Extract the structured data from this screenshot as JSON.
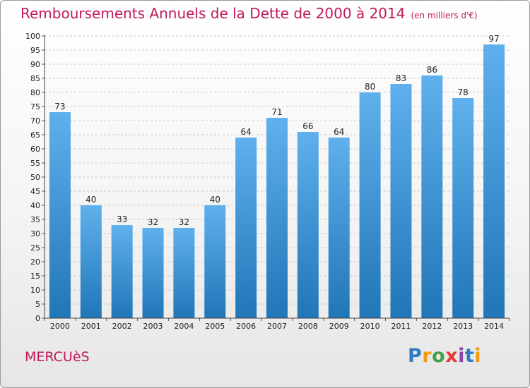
{
  "title": "Remboursements Annuels de la Dette de 2000 à 2014",
  "subtitle": "(en milliers d'€)",
  "commune": "MERCUèS",
  "logo": {
    "letters": [
      "P",
      "r",
      "o",
      "x",
      "i",
      "t",
      "i"
    ],
    "colors": [
      "#2e7bc4",
      "#f39c12",
      "#43a047",
      "#e53935",
      "#8e44ad",
      "#2e7bc4",
      "#f39c12"
    ]
  },
  "colors": {
    "bar_light": "#5fb0ec",
    "bar_dark": "#2176b8",
    "accent": "#c2185b"
  },
  "chart_data": {
    "type": "bar",
    "categories": [
      "2000",
      "2001",
      "2002",
      "2003",
      "2004",
      "2005",
      "2006",
      "2007",
      "2008",
      "2009",
      "2010",
      "2011",
      "2012",
      "2013",
      "2014"
    ],
    "values": [
      73,
      40,
      33,
      32,
      32,
      40,
      64,
      71,
      66,
      64,
      80,
      83,
      86,
      78,
      97
    ],
    "value_labels": [
      "73",
      "40",
      "33",
      "32",
      "32",
      "40",
      "64",
      "71",
      "66",
      "64",
      "80",
      "83",
      "86",
      "78",
      "97"
    ],
    "xlabel": "",
    "ylabel": "",
    "ylim": [
      0,
      100
    ],
    "yticks": [
      "0",
      "5",
      "10",
      "15",
      "20",
      "25",
      "30",
      "35",
      "40",
      "45",
      "50",
      "55",
      "60",
      "65",
      "70",
      "75",
      "80",
      "85",
      "90",
      "95",
      "100"
    ],
    "grid": true,
    "legend": "none"
  }
}
